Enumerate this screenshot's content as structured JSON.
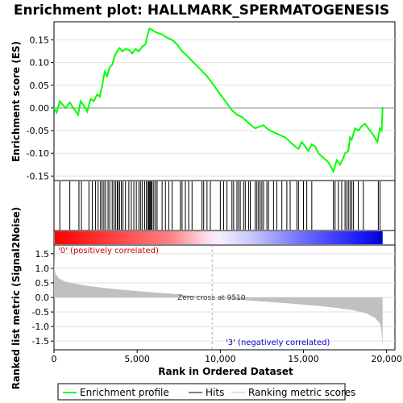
{
  "chart_data": {
    "type": "line",
    "title": "Enrichment plot: HALLMARK_SPERMATOGENESIS",
    "top_panel": {
      "ylabel": "Enrichment score (ES)",
      "ylim": [
        -0.16,
        0.19
      ],
      "yticks": [
        "-0.15",
        "-0.10",
        "-0.05",
        "0.00",
        "0.05",
        "0.10",
        "0.15"
      ],
      "ytick_values": [
        -0.15,
        -0.1,
        -0.05,
        0,
        0.05,
        0.1,
        0.15
      ],
      "series_color": "#00ff00",
      "x": [
        0,
        150,
        350,
        500,
        700,
        950,
        1200,
        1450,
        1600,
        1800,
        2000,
        2200,
        2400,
        2600,
        2750,
        2900,
        3050,
        3200,
        3350,
        3500,
        3650,
        3800,
        3950,
        4100,
        4300,
        4500,
        4700,
        4900,
        5100,
        5300,
        5500,
        5650,
        5750,
        5900,
        6050,
        6250,
        6500,
        6800,
        7100,
        7400,
        7700,
        8000,
        8400,
        8800,
        9200,
        9510,
        9800,
        10100,
        10400,
        10700,
        11000,
        11300,
        11600,
        11900,
        12100,
        12300,
        12600,
        12800,
        13000,
        13300,
        13600,
        13900,
        14200,
        14500,
        14700,
        14900,
        15100,
        15300,
        15500,
        15700,
        15900,
        16200,
        16500,
        16800,
        17000,
        17200,
        17400,
        17500,
        17700,
        17800,
        17900,
        18100,
        18300,
        18500,
        18700,
        18900,
        19200,
        19450,
        19600,
        19700,
        19760
      ],
      "y": [
        0.0,
        -0.01,
        0.015,
        0.008,
        0.0,
        0.012,
        -0.002,
        -0.015,
        0.015,
        0.005,
        -0.008,
        0.02,
        0.015,
        0.03,
        0.025,
        0.05,
        0.08,
        0.07,
        0.09,
        0.095,
        0.115,
        0.125,
        0.132,
        0.125,
        0.13,
        0.128,
        0.12,
        0.13,
        0.125,
        0.135,
        0.14,
        0.165,
        0.175,
        0.172,
        0.168,
        0.165,
        0.162,
        0.155,
        0.15,
        0.14,
        0.125,
        0.115,
        0.1,
        0.085,
        0.07,
        0.055,
        0.04,
        0.025,
        0.01,
        -0.005,
        -0.015,
        -0.02,
        -0.03,
        -0.04,
        -0.045,
        -0.042,
        -0.038,
        -0.045,
        -0.05,
        -0.055,
        -0.06,
        -0.065,
        -0.075,
        -0.085,
        -0.09,
        -0.075,
        -0.085,
        -0.095,
        -0.08,
        -0.085,
        -0.1,
        -0.11,
        -0.12,
        -0.14,
        -0.115,
        -0.125,
        -0.11,
        -0.1,
        -0.095,
        -0.065,
        -0.07,
        -0.045,
        -0.05,
        -0.04,
        -0.035,
        -0.045,
        -0.06,
        -0.075,
        -0.045,
        -0.05,
        0.002
      ]
    },
    "hits": [
      350,
      950,
      1500,
      1650,
      2100,
      2300,
      2500,
      2650,
      2800,
      2900,
      3000,
      3100,
      3250,
      3350,
      3500,
      3600,
      3700,
      3800,
      3850,
      3950,
      4050,
      4150,
      4300,
      4500,
      4650,
      4800,
      4950,
      5100,
      5200,
      5300,
      5450,
      5550,
      5650,
      5700,
      5750,
      5800,
      5850,
      5900,
      6000,
      6100,
      6200,
      6500,
      6700,
      6900,
      7100,
      7600,
      7700,
      7900,
      8100,
      8300,
      8900,
      9000,
      9200,
      9400,
      10000,
      10200,
      10400,
      10700,
      10800,
      11000,
      11100,
      11200,
      11400,
      11500,
      11700,
      11800,
      12100,
      12200,
      12300,
      12400,
      12500,
      12600,
      12800,
      12900,
      13200,
      13400,
      13700,
      14000,
      14200,
      14600,
      14700,
      15000,
      15200,
      15500,
      16800,
      16900,
      17100,
      17300,
      17500,
      17600,
      17700,
      17800,
      17900,
      18000,
      18300,
      18600,
      19500,
      19600
    ],
    "bottom_panel": {
      "ylabel": "Ranked list metric (Signal2Noise)",
      "xlabel": "Rank in Ordered Dataset",
      "ylim": [
        -1.8,
        1.8
      ],
      "yticks": [
        "-1.5",
        "-1.0",
        "-0.5",
        "0.0",
        "0.5",
        "1.0",
        "1.5"
      ],
      "ytick_values": [
        -1.5,
        -1.0,
        -0.5,
        0,
        0.5,
        1.0,
        1.5
      ],
      "xlim": [
        0,
        20500
      ],
      "xticks": [
        "0",
        "5,000",
        "10,000",
        "15,000",
        "20,000"
      ],
      "xtick_values": [
        0,
        5000,
        10000,
        15000,
        20000
      ],
      "metric_x": [
        0,
        20,
        100,
        300,
        600,
        1000,
        2000,
        3000,
        4000,
        5000,
        6000,
        7000,
        7500,
        8000,
        9000,
        9510,
        10000,
        11000,
        12000,
        13000,
        14000,
        15000,
        16000,
        17000,
        18000,
        18800,
        19300,
        19600,
        19700,
        19760
      ],
      "metric_y": [
        1.5,
        1.0,
        0.8,
        0.65,
        0.56,
        0.5,
        0.4,
        0.33,
        0.27,
        0.22,
        0.17,
        0.13,
        0.1,
        0.06,
        0.02,
        0.0,
        -0.03,
        -0.08,
        -0.12,
        -0.16,
        -0.2,
        -0.25,
        -0.3,
        -0.36,
        -0.44,
        -0.55,
        -0.7,
        -0.9,
        -1.2,
        -1.7
      ],
      "zero_cross_label": "Zero cross at 9510",
      "zero_cross": 9510,
      "pos_label": "'0' (positively correlated)",
      "neg_label": "'3' (negatively correlated)"
    },
    "legend": [
      {
        "label": "Enrichment profile",
        "color": "#00ff00"
      },
      {
        "label": "Hits",
        "color": "#000000"
      },
      {
        "label": "Ranking metric scores",
        "color": "#c0c0c0"
      }
    ]
  }
}
